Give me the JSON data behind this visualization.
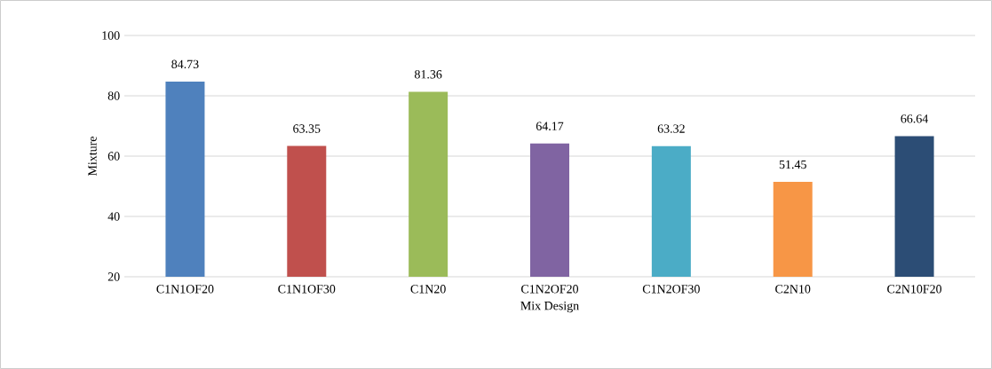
{
  "chart_data": {
    "type": "bar",
    "xlabel": "Mix Design",
    "ylabel": "Mixture",
    "categories": [
      "C1N1OF20",
      "C1N1OF30",
      "C1N20",
      "C1N2OF20",
      "C1N2OF30",
      "C2N10",
      "C2N10F20"
    ],
    "values": [
      84.73,
      63.35,
      81.36,
      64.17,
      63.32,
      51.45,
      66.64
    ],
    "colors": [
      "#4f81bd",
      "#c0504d",
      "#9bbb59",
      "#8064a2",
      "#4bacc6",
      "#f79646",
      "#2c4d75"
    ],
    "ylim": [
      20,
      100
    ],
    "yticks": [
      20,
      40,
      60,
      80,
      100
    ],
    "grid": "y",
    "data_labels": true
  }
}
